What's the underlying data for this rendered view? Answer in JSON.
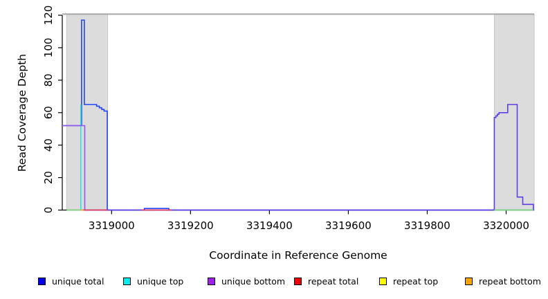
{
  "figure": {
    "background": "#ffffff",
    "plot_background": "#ffffff"
  },
  "chart_data": {
    "type": "line",
    "title": "",
    "xlabel": "Coordinate in Reference Genome",
    "ylabel": "Read Coverage Depth",
    "xlim": [
      3318875,
      3320071
    ],
    "ylim": [
      0,
      120
    ],
    "xticks": [
      3319000,
      3319200,
      3319400,
      3319600,
      3319800,
      3320000
    ],
    "yticks": [
      0,
      20,
      40,
      60,
      80,
      100,
      120
    ],
    "grid": false,
    "axis_color": "#000000",
    "shaded_regions": {
      "fill": "#dcdcdc",
      "border": "#c6c6c6",
      "x_ranges": [
        [
          3318886,
          3318990
        ],
        [
          3319970,
          3320071
        ]
      ]
    },
    "top_boundary_line": {
      "color": "#a8a8a8",
      "y_value": 120.7
    },
    "series": [
      {
        "name": "unique total",
        "legend_color": "#0000ee",
        "stroke": "#2244f2",
        "points": [
          [
            3318875,
            52
          ],
          [
            3318924,
            52
          ],
          [
            3318924,
            117
          ],
          [
            3318931,
            117
          ],
          [
            3318931,
            65
          ],
          [
            3318962,
            65
          ],
          [
            3318962,
            64
          ],
          [
            3318969,
            64
          ],
          [
            3318969,
            63
          ],
          [
            3318975,
            63
          ],
          [
            3318975,
            62
          ],
          [
            3318981,
            62
          ],
          [
            3318981,
            61
          ],
          [
            3318989,
            61
          ],
          [
            3318989,
            0
          ],
          [
            3319083,
            0
          ],
          [
            3319083,
            1
          ],
          [
            3319145,
            1
          ],
          [
            3319145,
            0
          ],
          [
            3320071,
            0
          ]
        ]
      },
      {
        "name": "unique top",
        "legend_color": "#00eeee",
        "stroke": "#33e0e0",
        "points": [
          [
            3318922,
            0
          ],
          [
            3318922,
            65
          ]
        ]
      },
      {
        "name": "unique bottom",
        "legend_color": "#a020f0",
        "stroke": "#6b45e6",
        "segments": [
          {
            "stroke": "#9558ec",
            "points": [
              [
                3318875,
                52
              ],
              [
                3318932,
                52
              ],
              [
                3318932,
                0
              ]
            ]
          },
          {
            "stroke": "#5f3de4",
            "points": [
              [
                3318932,
                0
              ],
              [
                3319970,
                0
              ],
              [
                3319970,
                57
              ],
              [
                3319974,
                57
              ],
              [
                3319974,
                58
              ],
              [
                3319978,
                58
              ],
              [
                3319978,
                59
              ],
              [
                3319982,
                59
              ],
              [
                3319982,
                60
              ],
              [
                3320004,
                60
              ],
              [
                3320004,
                65
              ],
              [
                3320028,
                65
              ],
              [
                3320028,
                8
              ],
              [
                3320042,
                8
              ],
              [
                3320042,
                3.5
              ],
              [
                3320069,
                3.5
              ],
              [
                3320069,
                0
              ],
              [
                3320071,
                0
              ]
            ]
          }
        ]
      },
      {
        "name": "repeat total",
        "legend_color": "#ee0000",
        "stroke": "#ee3355",
        "segments": [
          {
            "stroke": "#ee3355",
            "points": [
              [
                3318929,
                0
              ],
              [
                3318990,
                0
              ]
            ]
          },
          {
            "stroke": "#ee3355",
            "points": [
              [
                3319076,
                0
              ],
              [
                3319152,
                0
              ]
            ]
          }
        ]
      },
      {
        "name": "repeat top",
        "legend_color": "#ffff00",
        "stroke": "#f0f000",
        "points": []
      },
      {
        "name": "repeat bottom",
        "legend_color": "#ffa500",
        "stroke": "#ffa520",
        "points": [
          [
            3318921,
            0
          ],
          [
            3318929,
            0
          ]
        ]
      }
    ],
    "extra_baseline_segments": {
      "color": "#7fd87f",
      "x_ranges": [
        [
          3318886,
          3318921
        ],
        [
          3319970,
          3320069
        ]
      ]
    },
    "legend_position": "bottom"
  }
}
